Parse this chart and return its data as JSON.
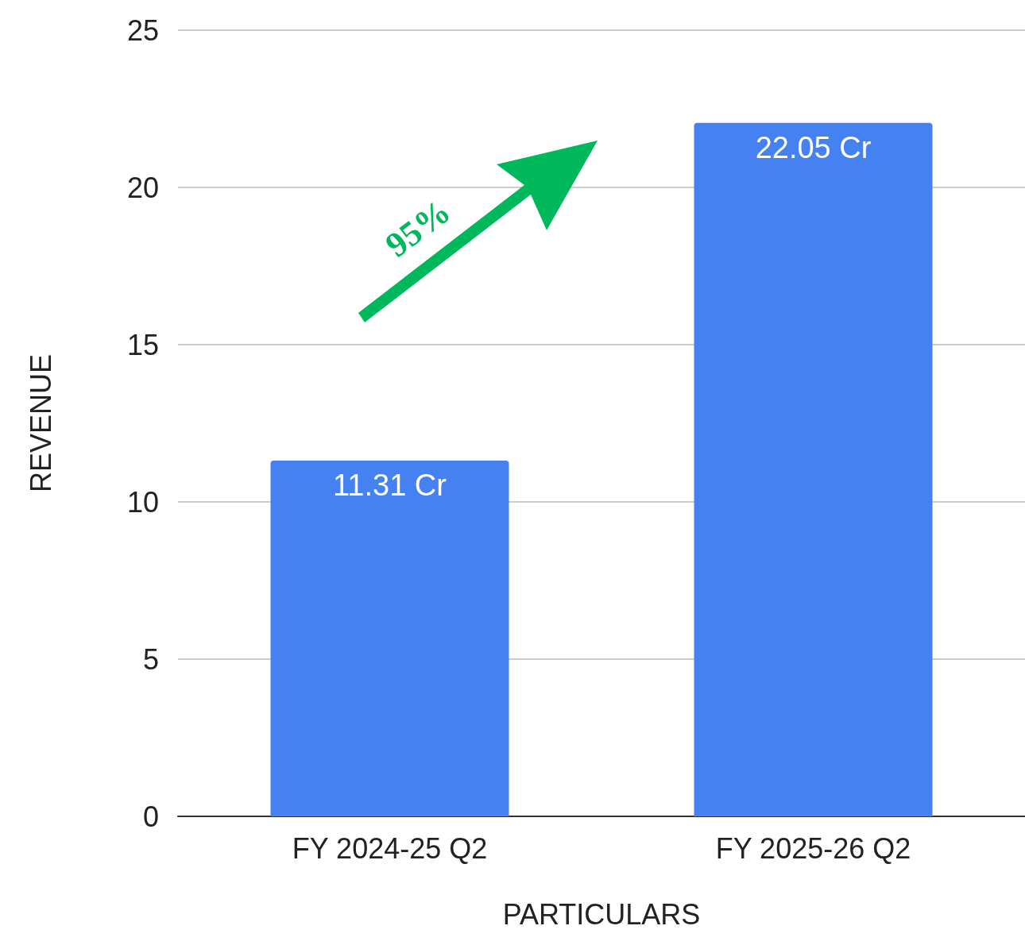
{
  "chart_data": {
    "type": "bar",
    "xlabel": "PARTICULARS",
    "ylabel": "REVENUE",
    "categories": [
      "FY 2024-25 Q2",
      "FY 2025-26 Q2"
    ],
    "values": [
      11.31,
      22.05
    ],
    "color": "#4581f0",
    "value_labels": [
      "11.31 Cr",
      "22.05 Cr"
    ],
    "ylim": [
      0,
      25
    ],
    "yticks": [
      0,
      5,
      10,
      15,
      20,
      25
    ],
    "grid": "y",
    "annotations": [
      "95%"
    ]
  }
}
